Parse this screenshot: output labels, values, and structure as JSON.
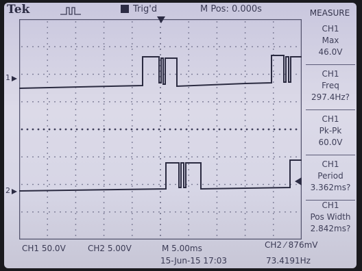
{
  "header": {
    "brand": "Tek",
    "trigger_status": "Trig'd",
    "position": "M Pos: 0.000s",
    "measure_title": "MEASURE"
  },
  "measurements": [
    {
      "channel": "CH1",
      "name": "Max",
      "value": "46.0V"
    },
    {
      "channel": "CH1",
      "name": "Freq",
      "value": "297.4Hz?"
    },
    {
      "channel": "CH1",
      "name": "Pk-Pk",
      "value": "60.0V"
    },
    {
      "channel": "CH1",
      "name": "Period",
      "value": "3.362ms?"
    },
    {
      "channel": "CH1",
      "name": "Pos Width",
      "value": "2.842ms?"
    }
  ],
  "footer": {
    "ch1_scale": "CH1  50.0V",
    "ch2_scale": "CH2  5.00V",
    "timebase": "M 5.00ms",
    "trigger": "CH2 ⁄ 876mV",
    "date": "15-Jun-15 17:03",
    "trigger_freq": "73.4191Hz"
  },
  "markers": {
    "ch1": "1",
    "ch2": "2"
  },
  "colors": {
    "trace": "#2a2a40",
    "background": "#d6d5e6"
  }
}
